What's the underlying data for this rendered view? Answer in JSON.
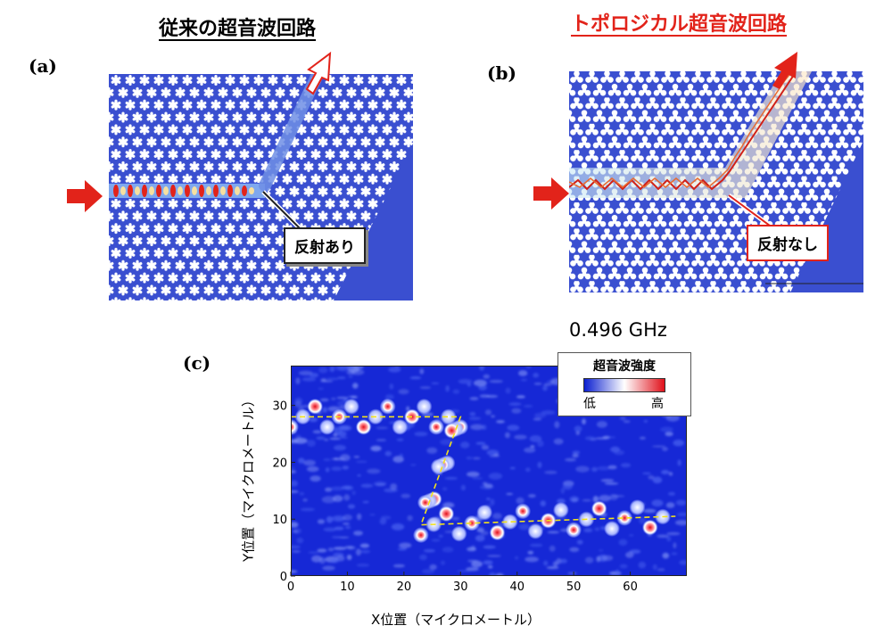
{
  "titles": {
    "a": "従来の超音波回路",
    "b": "トポロジカル超音波回路"
  },
  "panel_labels": {
    "a": "(a)",
    "b": "(b)",
    "c": "(c)"
  },
  "callouts": {
    "a": "反射あり",
    "b": "反射なし"
  },
  "colors": {
    "accent_red": "#e2231a",
    "crystal_blue": "#3a4fd0",
    "guide_yellow": "#f2e21c"
  },
  "chart": {
    "frequency": "0.496 GHz",
    "legend_title": "超音波強度",
    "legend_low": "低",
    "legend_high": "高",
    "xlabel": "X位置（マイクロメートル）",
    "ylabel": "Y位置（マイクロメートル）"
  },
  "chart_data": {
    "type": "heatmap",
    "xlabel": "X位置（マイクロメートル）",
    "ylabel": "Y位置（マイクロメートル）",
    "xlim": [
      0,
      70
    ],
    "ylim": [
      0,
      37
    ],
    "x_ticks": [
      0,
      10,
      20,
      30,
      40,
      50,
      60
    ],
    "y_ticks": [
      0,
      10,
      20,
      30
    ],
    "colorbar": {
      "min_label": "低",
      "max_label": "高",
      "colors": [
        "#0a1fd0",
        "#ffffff",
        "#e0101a"
      ]
    },
    "waveguide_path": [
      [
        0,
        28
      ],
      [
        30,
        28
      ],
      [
        23,
        9
      ],
      [
        68,
        10.5
      ]
    ]
  }
}
